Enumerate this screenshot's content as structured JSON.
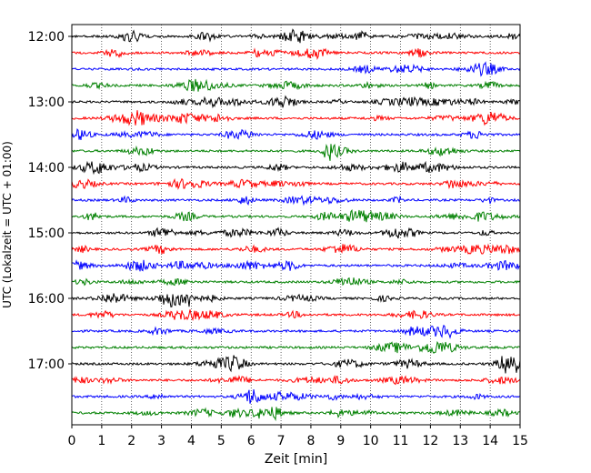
{
  "chart_data": {
    "type": "line",
    "title": "",
    "xlabel": "Zeit  [min]",
    "ylabel": "UTC (Lokalzeit = UTC + 01:00)",
    "xlim": [
      0,
      15
    ],
    "x_ticks": [
      "0",
      "1",
      "2",
      "3",
      "4",
      "5",
      "6",
      "7",
      "8",
      "9",
      "10",
      "11",
      "12",
      "13",
      "14",
      "15"
    ],
    "y_ticks": [
      "12:00",
      "13:00",
      "14:00",
      "15:00",
      "16:00",
      "17:00"
    ],
    "grid": "vertical dotted lines at each minute",
    "trace_interval_min": 15,
    "traces": [
      {
        "start": "12:00",
        "color": "#000000"
      },
      {
        "start": "12:15",
        "color": "#ff0000"
      },
      {
        "start": "12:30",
        "color": "#0000ff"
      },
      {
        "start": "12:45",
        "color": "#008000"
      },
      {
        "start": "13:00",
        "color": "#000000"
      },
      {
        "start": "13:15",
        "color": "#ff0000"
      },
      {
        "start": "13:30",
        "color": "#0000ff"
      },
      {
        "start": "13:45",
        "color": "#008000"
      },
      {
        "start": "14:00",
        "color": "#000000"
      },
      {
        "start": "14:15",
        "color": "#ff0000"
      },
      {
        "start": "14:30",
        "color": "#0000ff"
      },
      {
        "start": "14:45",
        "color": "#008000"
      },
      {
        "start": "15:00",
        "color": "#000000"
      },
      {
        "start": "15:15",
        "color": "#ff0000"
      },
      {
        "start": "15:30",
        "color": "#0000ff"
      },
      {
        "start": "15:45",
        "color": "#008000"
      },
      {
        "start": "16:00",
        "color": "#000000"
      },
      {
        "start": "16:15",
        "color": "#ff0000"
      },
      {
        "start": "16:30",
        "color": "#0000ff"
      },
      {
        "start": "16:45",
        "color": "#008000"
      },
      {
        "start": "17:00",
        "color": "#000000"
      },
      {
        "start": "17:15",
        "color": "#ff0000"
      },
      {
        "start": "17:30",
        "color": "#0000ff"
      },
      {
        "start": "17:45",
        "color": "#008000"
      }
    ]
  }
}
